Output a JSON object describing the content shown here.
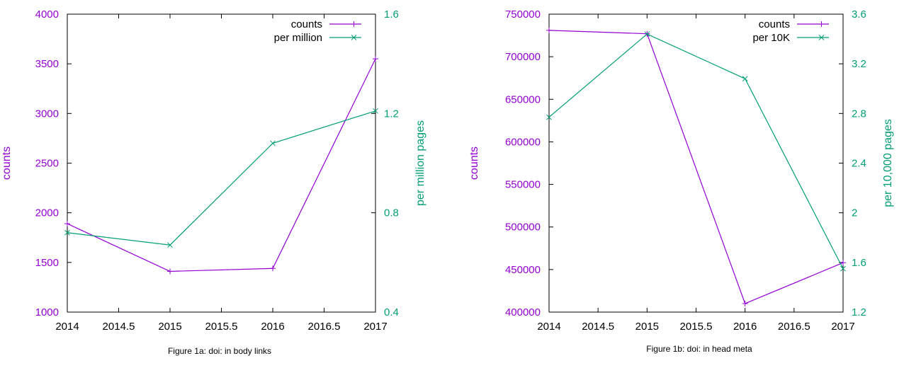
{
  "colors": {
    "counts": "#9400d3",
    "per": "#009e73",
    "frame": "#000000",
    "caption": "#000000"
  },
  "chart_data": [
    {
      "type": "line",
      "caption": "Figure 1a: doi: in body links",
      "xlabel": "",
      "ylabel": "counts",
      "y2label": "per million pages",
      "xlim": [
        2014,
        2017
      ],
      "ylim": [
        1000,
        4000
      ],
      "y2lim": [
        0.4,
        1.6
      ],
      "x_ticks": [
        "2014",
        "2014.5",
        "2015",
        "2015.5",
        "2016",
        "2016.5",
        "2017"
      ],
      "y_ticks": [
        "1000",
        "1500",
        "2000",
        "2500",
        "3000",
        "3500",
        "4000"
      ],
      "y2_ticks": [
        "0.4",
        "0.8",
        "1.2",
        "1.6"
      ],
      "grid": false,
      "legend_position": "top-right",
      "series": [
        {
          "name": "counts",
          "axis": "y",
          "marker": "+",
          "color": "#9400d3",
          "x": [
            2014,
            2015,
            2016,
            2017
          ],
          "values": [
            1890,
            1410,
            1440,
            3550
          ]
        },
        {
          "name": "per million",
          "axis": "y2",
          "marker": "x",
          "color": "#009e73",
          "x": [
            2014,
            2015,
            2016,
            2017
          ],
          "values": [
            0.72,
            0.67,
            1.08,
            1.21
          ]
        }
      ]
    },
    {
      "type": "line",
      "caption": "Figure 1b: doi: in head meta",
      "xlabel": "",
      "ylabel": "counts",
      "y2label": "per 10,000 pages",
      "xlim": [
        2014,
        2017
      ],
      "ylim": [
        400000,
        750000
      ],
      "y2lim": [
        1.2,
        3.6
      ],
      "x_ticks": [
        "2014",
        "2014.5",
        "2015",
        "2015.5",
        "2016",
        "2016.5",
        "2017"
      ],
      "y_ticks": [
        "400000",
        "450000",
        "500000",
        "550000",
        "600000",
        "650000",
        "700000",
        "750000"
      ],
      "y2_ticks": [
        "1.2",
        "1.6",
        "2",
        "2.4",
        "2.8",
        "3.2",
        "3.6"
      ],
      "grid": false,
      "legend_position": "top-right",
      "series": [
        {
          "name": "counts",
          "axis": "y",
          "marker": "+",
          "color": "#9400d3",
          "x": [
            2014,
            2015,
            2016,
            2017
          ],
          "values": [
            731000,
            727000,
            410000,
            458000
          ]
        },
        {
          "name": "per 10K",
          "axis": "y2",
          "marker": "x",
          "color": "#009e73",
          "x": [
            2014,
            2015,
            2016,
            2017
          ],
          "values": [
            2.77,
            3.44,
            3.08,
            1.55
          ]
        }
      ]
    }
  ]
}
